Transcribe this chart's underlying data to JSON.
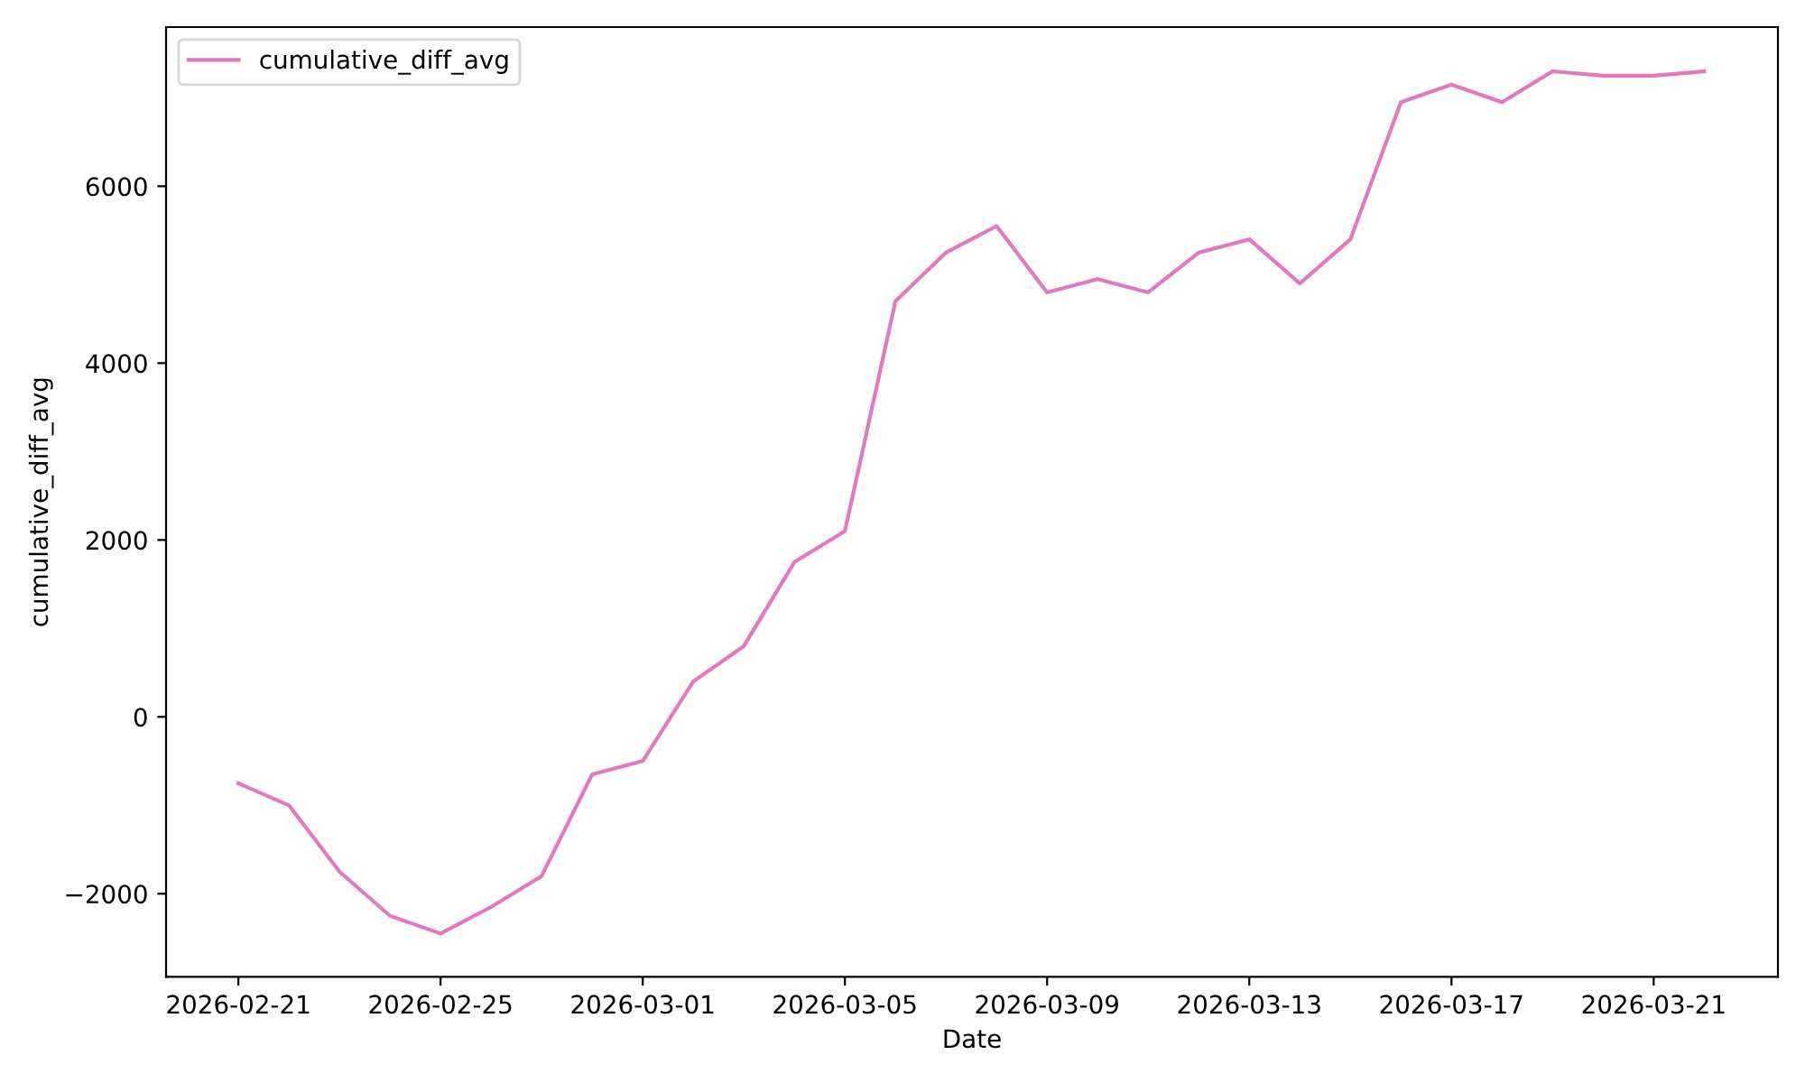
{
  "chart_data": {
    "type": "line",
    "xlabel": "Date",
    "ylabel": "cumulative_diff_avg",
    "x": [
      "2026-02-21",
      "2026-02-22",
      "2026-02-23",
      "2026-02-24",
      "2026-02-25",
      "2026-02-26",
      "2026-02-27",
      "2026-02-28",
      "2026-03-01",
      "2026-03-02",
      "2026-03-03",
      "2026-03-04",
      "2026-03-05",
      "2026-03-06",
      "2026-03-07",
      "2026-03-08",
      "2026-03-09",
      "2026-03-10",
      "2026-03-11",
      "2026-03-12",
      "2026-03-13",
      "2026-03-14",
      "2026-03-15",
      "2026-03-16",
      "2026-03-17",
      "2026-03-18",
      "2026-03-19",
      "2026-03-20",
      "2026-03-21",
      "2026-03-22"
    ],
    "series": [
      {
        "name": "cumulative_diff_avg",
        "color": "#e377c2",
        "values": [
          -750,
          -1000,
          -1750,
          -2250,
          -2450,
          -2150,
          -1800,
          -650,
          -500,
          400,
          800,
          1750,
          2100,
          4700,
          5250,
          5550,
          4800,
          4950,
          4800,
          5250,
          5400,
          4900,
          5400,
          6950,
          7150,
          6950,
          7300,
          7250,
          7250,
          7300
        ]
      }
    ],
    "xlim": [
      "2026-02-19T13:40",
      "2026-03-23T11:00"
    ],
    "xticks": [
      {
        "value": "2026-02-21",
        "label": "2026-02-21"
      },
      {
        "value": "2026-02-25",
        "label": "2026-02-25"
      },
      {
        "value": "2026-03-01",
        "label": "2026-03-01"
      },
      {
        "value": "2026-03-05",
        "label": "2026-03-05"
      },
      {
        "value": "2026-03-09",
        "label": "2026-03-09"
      },
      {
        "value": "2026-03-13",
        "label": "2026-03-13"
      },
      {
        "value": "2026-03-17",
        "label": "2026-03-17"
      },
      {
        "value": "2026-03-21",
        "label": "2026-03-21"
      }
    ],
    "ylim": [
      -2940,
      7800
    ],
    "yticks": [
      {
        "value": -2000,
        "label": "−2000"
      },
      0,
      2000,
      4000,
      6000
    ],
    "legend": "top left",
    "grid": false,
    "marker": "none",
    "line_style": "solid"
  }
}
